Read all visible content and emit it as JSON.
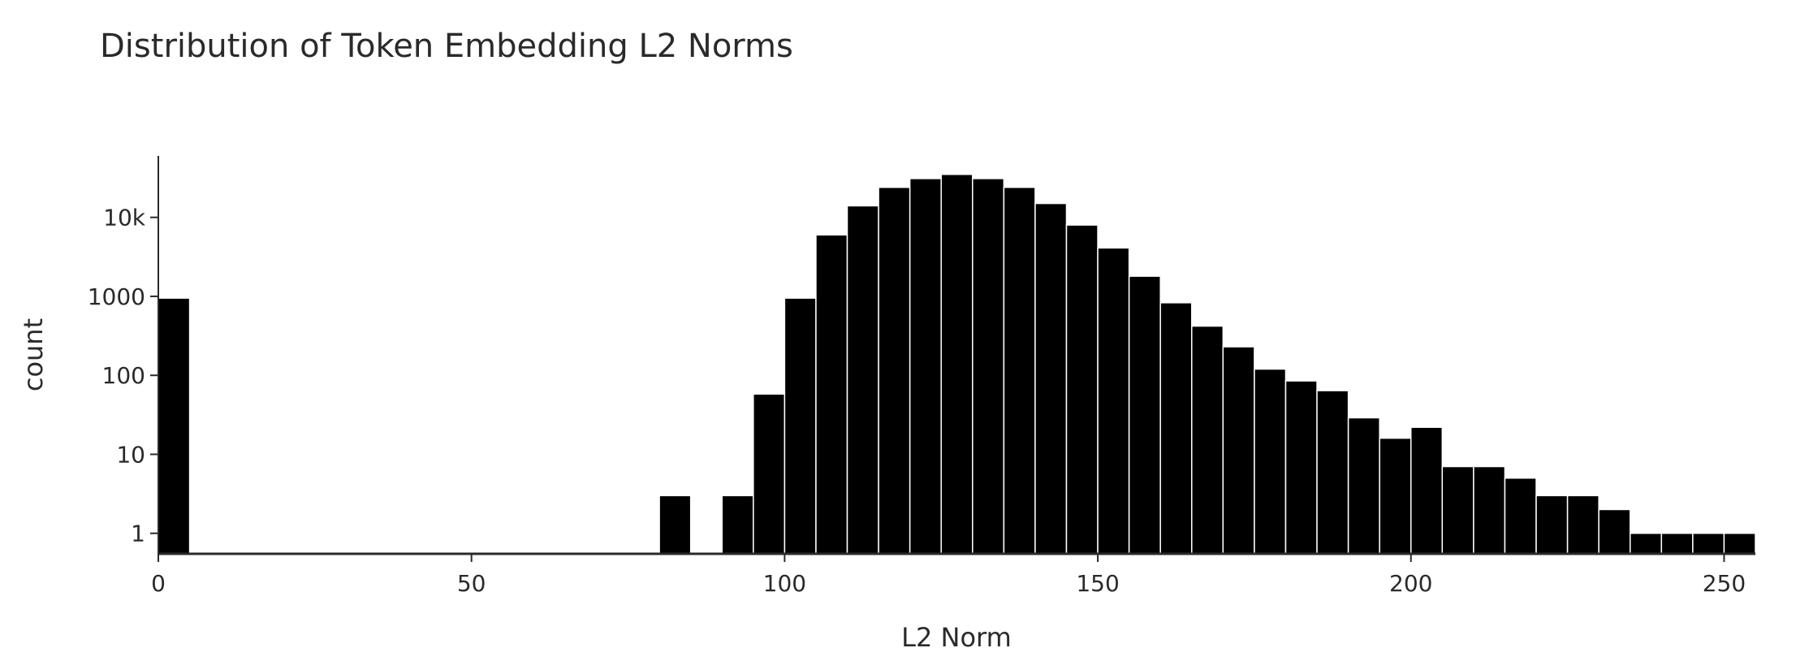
{
  "chart_data": {
    "type": "bar",
    "title": "Distribution of Token Embedding L2 Norms",
    "xlabel": "L2 Norm",
    "ylabel": "count",
    "y_scale": "log",
    "grid": false,
    "bar_color": "#000000",
    "bar_edge_color": "#ffffff",
    "xlim": [
      0,
      255
    ],
    "ylim": [
      0.55,
      60000
    ],
    "x_ticks": [
      {
        "value": 0,
        "label": "0"
      },
      {
        "value": 50,
        "label": "50"
      },
      {
        "value": 100,
        "label": "100"
      },
      {
        "value": 150,
        "label": "150"
      },
      {
        "value": 200,
        "label": "200"
      },
      {
        "value": 250,
        "label": "250"
      }
    ],
    "y_ticks": [
      {
        "value": 1,
        "label": "1"
      },
      {
        "value": 10,
        "label": "10"
      },
      {
        "value": 100,
        "label": "100"
      },
      {
        "value": 1000,
        "label": "1000"
      },
      {
        "value": 10000,
        "label": "10k"
      }
    ],
    "bin_width": 5,
    "bins": [
      {
        "x0": 0,
        "count": 950
      },
      {
        "x0": 80,
        "count": 3
      },
      {
        "x0": 90,
        "count": 3
      },
      {
        "x0": 95,
        "count": 58
      },
      {
        "x0": 100,
        "count": 950
      },
      {
        "x0": 105,
        "count": 6000
      },
      {
        "x0": 110,
        "count": 14000
      },
      {
        "x0": 115,
        "count": 24000
      },
      {
        "x0": 120,
        "count": 31000
      },
      {
        "x0": 125,
        "count": 35000
      },
      {
        "x0": 130,
        "count": 31000
      },
      {
        "x0": 135,
        "count": 24000
      },
      {
        "x0": 140,
        "count": 15000
      },
      {
        "x0": 145,
        "count": 8000
      },
      {
        "x0": 150,
        "count": 4100
      },
      {
        "x0": 155,
        "count": 1800
      },
      {
        "x0": 160,
        "count": 830
      },
      {
        "x0": 165,
        "count": 420
      },
      {
        "x0": 170,
        "count": 230
      },
      {
        "x0": 175,
        "count": 120
      },
      {
        "x0": 180,
        "count": 85
      },
      {
        "x0": 185,
        "count": 64
      },
      {
        "x0": 190,
        "count": 29
      },
      {
        "x0": 195,
        "count": 16
      },
      {
        "x0": 200,
        "count": 22
      },
      {
        "x0": 205,
        "count": 7
      },
      {
        "x0": 210,
        "count": 7
      },
      {
        "x0": 215,
        "count": 5
      },
      {
        "x0": 220,
        "count": 3
      },
      {
        "x0": 225,
        "count": 3
      },
      {
        "x0": 230,
        "count": 2
      },
      {
        "x0": 235,
        "count": 1
      },
      {
        "x0": 240,
        "count": 1
      },
      {
        "x0": 245,
        "count": 1
      },
      {
        "x0": 250,
        "count": 1
      }
    ]
  }
}
